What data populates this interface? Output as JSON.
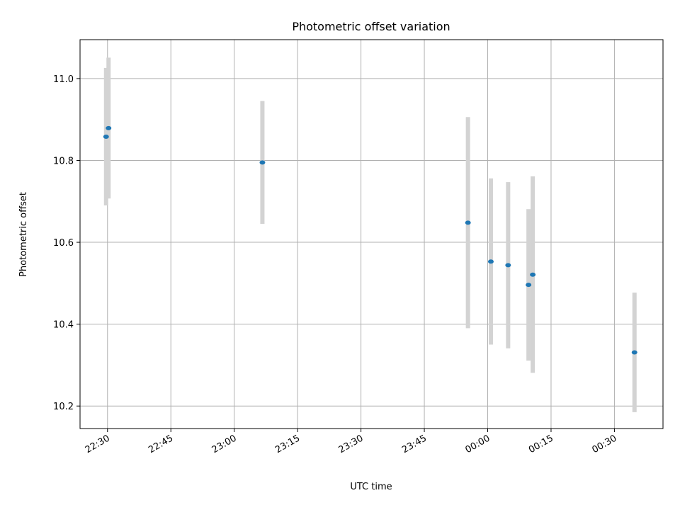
{
  "chart_data": {
    "type": "scatter",
    "title": "Photometric offset variation",
    "xlabel": "UTC time",
    "ylabel": "Photometric offset",
    "grid": true,
    "x_tick_labels": [
      "22:30",
      "22:45",
      "23:00",
      "23:15",
      "23:30",
      "23:45",
      "00:00",
      "00:15",
      "00:30"
    ],
    "y_ticks": [
      10.2,
      10.4,
      10.6,
      10.8,
      11.0
    ],
    "y_tick_labels": [
      "10.2",
      "10.4",
      "10.6",
      "10.8",
      "11.0"
    ],
    "xlim": [
      "22:23:30",
      "00:41:30"
    ],
    "ylim": [
      10.145,
      11.095
    ],
    "colors": {
      "point": "#1f77b4",
      "errorbar": "#d3d3d3",
      "grid": "#b0b0b0"
    },
    "series": [
      {
        "points": [
          {
            "time": "22:29:40",
            "y": 10.858,
            "yerr": 0.168
          },
          {
            "time": "22:30:15",
            "y": 10.879,
            "yerr": 0.172
          },
          {
            "time": "23:06:40",
            "y": 10.795,
            "yerr": 0.15
          },
          {
            "time": "23:55:20",
            "y": 10.648,
            "yerr": 0.258
          },
          {
            "time": "00:00:45",
            "y": 10.553,
            "yerr": 0.203
          },
          {
            "time": "00:04:50",
            "y": 10.544,
            "yerr": 0.203
          },
          {
            "time": "00:09:40",
            "y": 10.496,
            "yerr": 0.185
          },
          {
            "time": "00:10:40",
            "y": 10.521,
            "yerr": 0.24
          },
          {
            "time": "00:34:45",
            "y": 10.331,
            "yerr": 0.146
          }
        ]
      }
    ]
  }
}
